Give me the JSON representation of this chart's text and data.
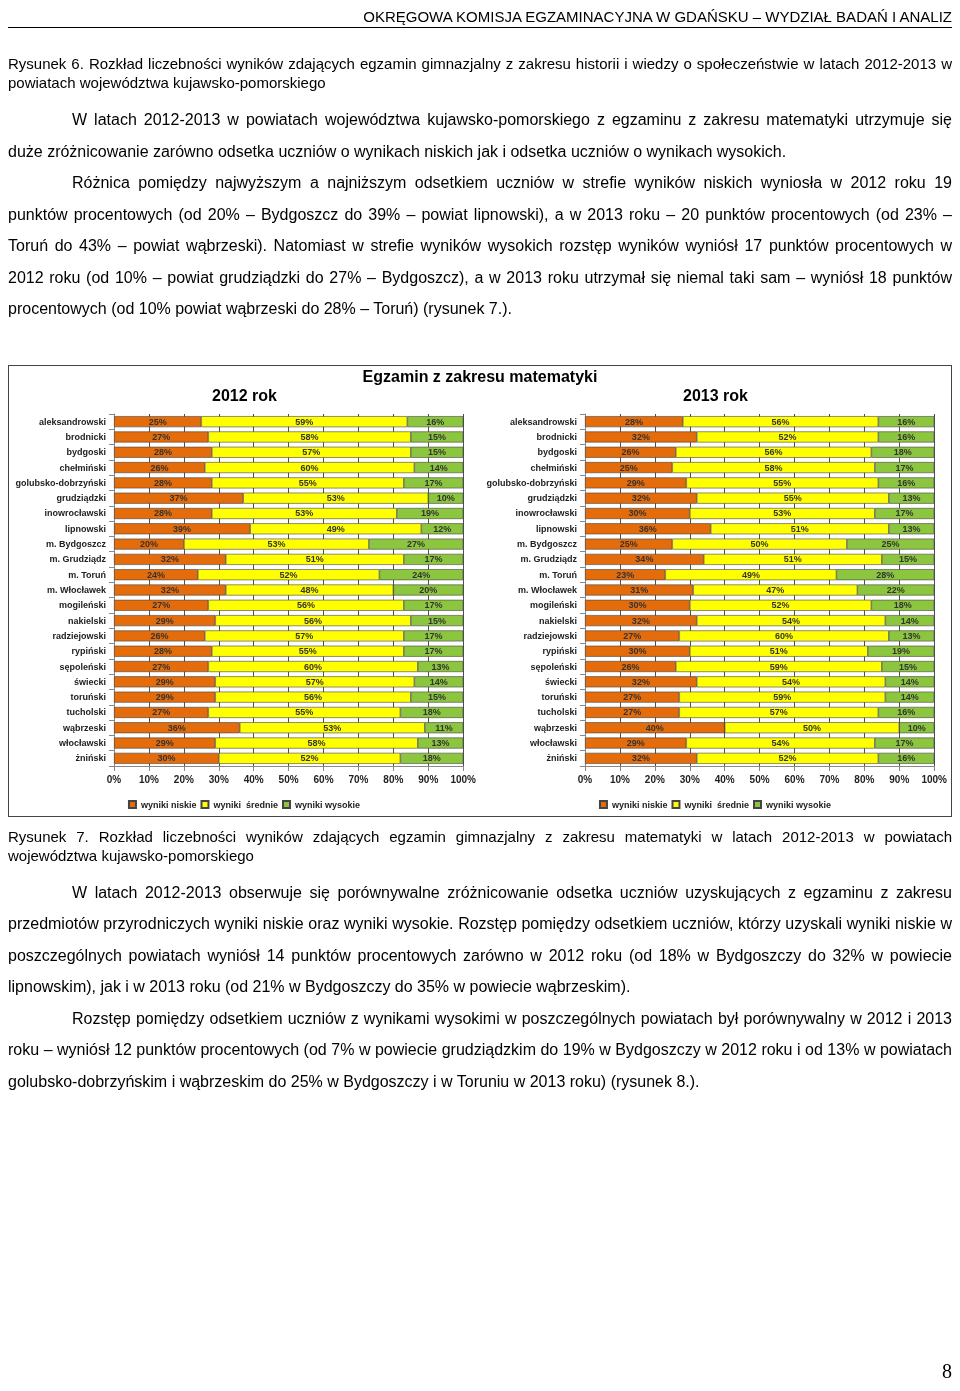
{
  "chart_data": [
    {
      "type": "bar",
      "orientation": "horizontal",
      "stacked": true,
      "title": "Egzamin z zakresu matematyki",
      "subtitle": "2012 rok",
      "annotations": [
        "OKRĘGOWA KOMISJA EGZAMINACYJNA W GDAŃSKU – WYDZIAŁ BADAŃ I ANALIZ",
        "Rysunek 6. Rozkład liczebności wyników zdających egzamin gimnazjalny z zakresu historii i wiedzy o społeczeństwie w latach 2012-2013 w powiatach województwa kujawsko-pomorskiego",
        "W latach 2012-2013 w powiatach województwa kujawsko-pomorskiego z egzaminu z zakresu matematyki utrzymuje się duże zróżnicowanie zarówno odsetka uczniów o wynikach niskich jak i odsetka uczniów o wynikach wysokich.",
        "Różnica pomiędzy najwyższym a najniższym odsetkiem uczniów w strefie wyników niskich wyniosła w 2012 roku 19 punktów procentowych (od 20% – Bydgoszcz do 39% – powiat lipnowski), a w 2013 roku – 20 punktów procentowych (od 23% – Toruń do 43% – powiat wąbrzeski). Natomiast w strefie wyników wysokich rozstęp wyników wyniósł 17 punktów procentowych w 2012 roku (od 10% – powiat grudziądzki do 27% – Bydgoszcz), a w 2013 roku utrzymał się niemal taki sam – wyniósł 18 punktów procentowych (od 10% powiat wąbrzeski do 28% – Toruń) (rysunek 7.)."
      ],
      "categories": [
        "aleksandrowski",
        "brodnicki",
        "bydgoski",
        "chełmiński",
        "golubsko-dobrzyński",
        "grudziądzki",
        "inowrocławski",
        "lipnowski",
        "m. Bydgoszcz",
        "m. Grudziądz",
        "m. Toruń",
        "m. Włocławek",
        "mogileński",
        "nakielski",
        "radziejowski",
        "rypiński",
        "sępoleński",
        "świecki",
        "toruński",
        "tucholski",
        "wąbrzeski",
        "włocławski",
        "żniński"
      ],
      "xlim": [
        0,
        100
      ],
      "xticks": [
        {
          "value": 0,
          "label": "0%"
        },
        {
          "value": 10,
          "label": "10%"
        },
        {
          "value": 20,
          "label": "20%"
        },
        {
          "value": 30,
          "label": "30%"
        },
        {
          "value": 40,
          "label": "40%"
        },
        {
          "value": 50,
          "label": "50%"
        },
        {
          "value": 60,
          "label": "60%"
        },
        {
          "value": 70,
          "label": "70%"
        },
        {
          "value": 80,
          "label": "80%"
        },
        {
          "value": 90,
          "label": "90%"
        },
        {
          "value": 100,
          "label": "100%"
        }
      ],
      "grid": "x",
      "legend": "bottom",
      "series": [
        {
          "name": "wyniki niskie",
          "color": "#e46c0a",
          "values": [
            25,
            27,
            28,
            26,
            28,
            37,
            28,
            39,
            20,
            32,
            24,
            32,
            27,
            29,
            26,
            28,
            27,
            29,
            29,
            27,
            36,
            29,
            30
          ],
          "value_labels": [
            "25%",
            "27%",
            "28%",
            "26%",
            "28%",
            "37%",
            "28%",
            "39%",
            "20%",
            "32%",
            "24%",
            "32%",
            "27%",
            "29%",
            "26%",
            "28%",
            "27%",
            "29%",
            "29%",
            "27%",
            "36%",
            "29%",
            "30%"
          ]
        },
        {
          "name": "wyniki  średnie",
          "color": "#ffff00",
          "values": [
            59,
            58,
            57,
            60,
            55,
            53,
            53,
            49,
            53,
            51,
            52,
            48,
            56,
            56,
            57,
            55,
            60,
            57,
            56,
            55,
            53,
            58,
            52
          ],
          "value_labels": [
            "59%",
            "58%",
            "57%",
            "60%",
            "55%",
            "53%",
            "53%",
            "49%",
            "53%",
            "51%",
            "52%",
            "48%",
            "56%",
            "56%",
            "57%",
            "55%",
            "60%",
            "57%",
            "56%",
            "55%",
            "53%",
            "58%",
            "52%"
          ]
        },
        {
          "name": "wyniki wysokie",
          "color": "#8cc63f",
          "values": [
            16,
            15,
            15,
            14,
            17,
            10,
            19,
            12,
            27,
            17,
            24,
            20,
            17,
            15,
            17,
            17,
            13,
            14,
            15,
            18,
            11,
            13,
            18
          ],
          "value_labels": [
            "16%",
            "15%",
            "15%",
            "14%",
            "17%",
            "10%",
            "19%",
            "12%",
            "27%",
            "17%",
            "24%",
            "20%",
            "17%",
            "15%",
            "17%",
            "17%",
            "13%",
            "14%",
            "15%",
            "18%",
            "11%",
            "13%",
            "18%"
          ]
        }
      ]
    },
    {
      "type": "bar",
      "orientation": "horizontal",
      "stacked": true,
      "subtitle": "2013 rok",
      "annotations": [
        "Rysunek 7. Rozkład liczebności wyników zdających egzamin gimnazjalny z zakresu matematyki w latach 2012-2013 w powiatach województwa kujawsko-pomorskiego",
        "W latach 2012-2013 obserwuje się porównywalne zróżnicowanie odsetka uczniów uzyskujących z egzaminu z zakresu przedmiotów przyrodniczych wyniki niskie oraz wyniki wysokie. Rozstęp pomiędzy odsetkiem uczniów, którzy uzyskali wyniki niskie w poszczególnych powiatach wyniósł 14 punktów procentowych zarówno w 2012 roku (od 18% w Bydgoszczy do 32% w powiecie lipnowskim), jak i w 2013 roku (od 21% w Bydgoszczy do 35% w powiecie wąbrzeskim).",
        "Rozstęp pomiędzy odsetkiem uczniów z wynikami wysokimi w poszczególnych powiatach był porównywalny w 2012 i 2013 roku – wyniósł 12 punktów procentowych (od 7% w powiecie grudziądzkim do 19% w Bydgoszczy w 2012 roku i od 13% w powiatach golubsko-dobrzyńskim i wąbrzeskim do 25% w Bydgoszczy i w Toruniu w 2013 roku) (rysunek 8.).",
        "8"
      ],
      "categories": [
        "aleksandrowski",
        "brodnicki",
        "bydgoski",
        "chełmiński",
        "golubsko-dobrzyński",
        "grudziądzki",
        "inowrocławski",
        "lipnowski",
        "m. Bydgoszcz",
        "m. Grudziądz",
        "m. Toruń",
        "m. Włocławek",
        "mogileński",
        "nakielski",
        "radziejowski",
        "rypiński",
        "sępoleński",
        "świecki",
        "toruński",
        "tucholski",
        "wąbrzeski",
        "włocławski",
        "żniński"
      ],
      "xlim": [
        0,
        100
      ],
      "xticks": [
        {
          "value": 0,
          "label": "0%"
        },
        {
          "value": 10,
          "label": "10%"
        },
        {
          "value": 20,
          "label": "20%"
        },
        {
          "value": 30,
          "label": "30%"
        },
        {
          "value": 40,
          "label": "40%"
        },
        {
          "value": 50,
          "label": "50%"
        },
        {
          "value": 60,
          "label": "60%"
        },
        {
          "value": 70,
          "label": "70%"
        },
        {
          "value": 80,
          "label": "80%"
        },
        {
          "value": 90,
          "label": "90%"
        },
        {
          "value": 100,
          "label": "100%"
        }
      ],
      "grid": "x",
      "legend": "bottom",
      "series": [
        {
          "name": "wyniki niskie",
          "color": "#e46c0a",
          "values": [
            28,
            32,
            26,
            25,
            29,
            32,
            30,
            36,
            25,
            34,
            23,
            31,
            30,
            32,
            27,
            30,
            26,
            32,
            27,
            27,
            40,
            29,
            32
          ],
          "value_labels": [
            "28%",
            "32%",
            "26%",
            "25%",
            "29%",
            "32%",
            "30%",
            "36%",
            "25%",
            "34%",
            "23%",
            "31%",
            "30%",
            "32%",
            "27%",
            "30%",
            "26%",
            "32%",
            "27%",
            "27%",
            "40%",
            "29%",
            "32%"
          ]
        },
        {
          "name": "wyniki  średnie",
          "color": "#ffff00",
          "values": [
            56,
            52,
            56,
            58,
            55,
            55,
            53,
            51,
            50,
            51,
            49,
            47,
            52,
            54,
            60,
            51,
            59,
            54,
            59,
            57,
            50,
            54,
            52
          ],
          "value_labels": [
            "56%",
            "52%",
            "56%",
            "58%",
            "55%",
            "55%",
            "53%",
            "51%",
            "50%",
            "51%",
            "49%",
            "47%",
            "52%",
            "54%",
            "60%",
            "51%",
            "59%",
            "54%",
            "59%",
            "57%",
            "50%",
            "54%",
            "52%"
          ]
        },
        {
          "name": "wyniki wysokie",
          "color": "#8cc63f",
          "values": [
            16,
            16,
            18,
            17,
            16,
            13,
            17,
            13,
            25,
            15,
            28,
            22,
            18,
            14,
            13,
            19,
            15,
            14,
            14,
            16,
            10,
            17,
            16
          ],
          "value_labels": [
            "16%",
            "16%",
            "18%",
            "17%",
            "16%",
            "13%",
            "17%",
            "13%",
            "25%",
            "15%",
            "28%",
            "22%",
            "18%",
            "14%",
            "13%",
            "19%",
            "15%",
            "14%",
            "14%",
            "16%",
            "10%",
            "17%",
            "16%"
          ]
        }
      ]
    }
  ]
}
